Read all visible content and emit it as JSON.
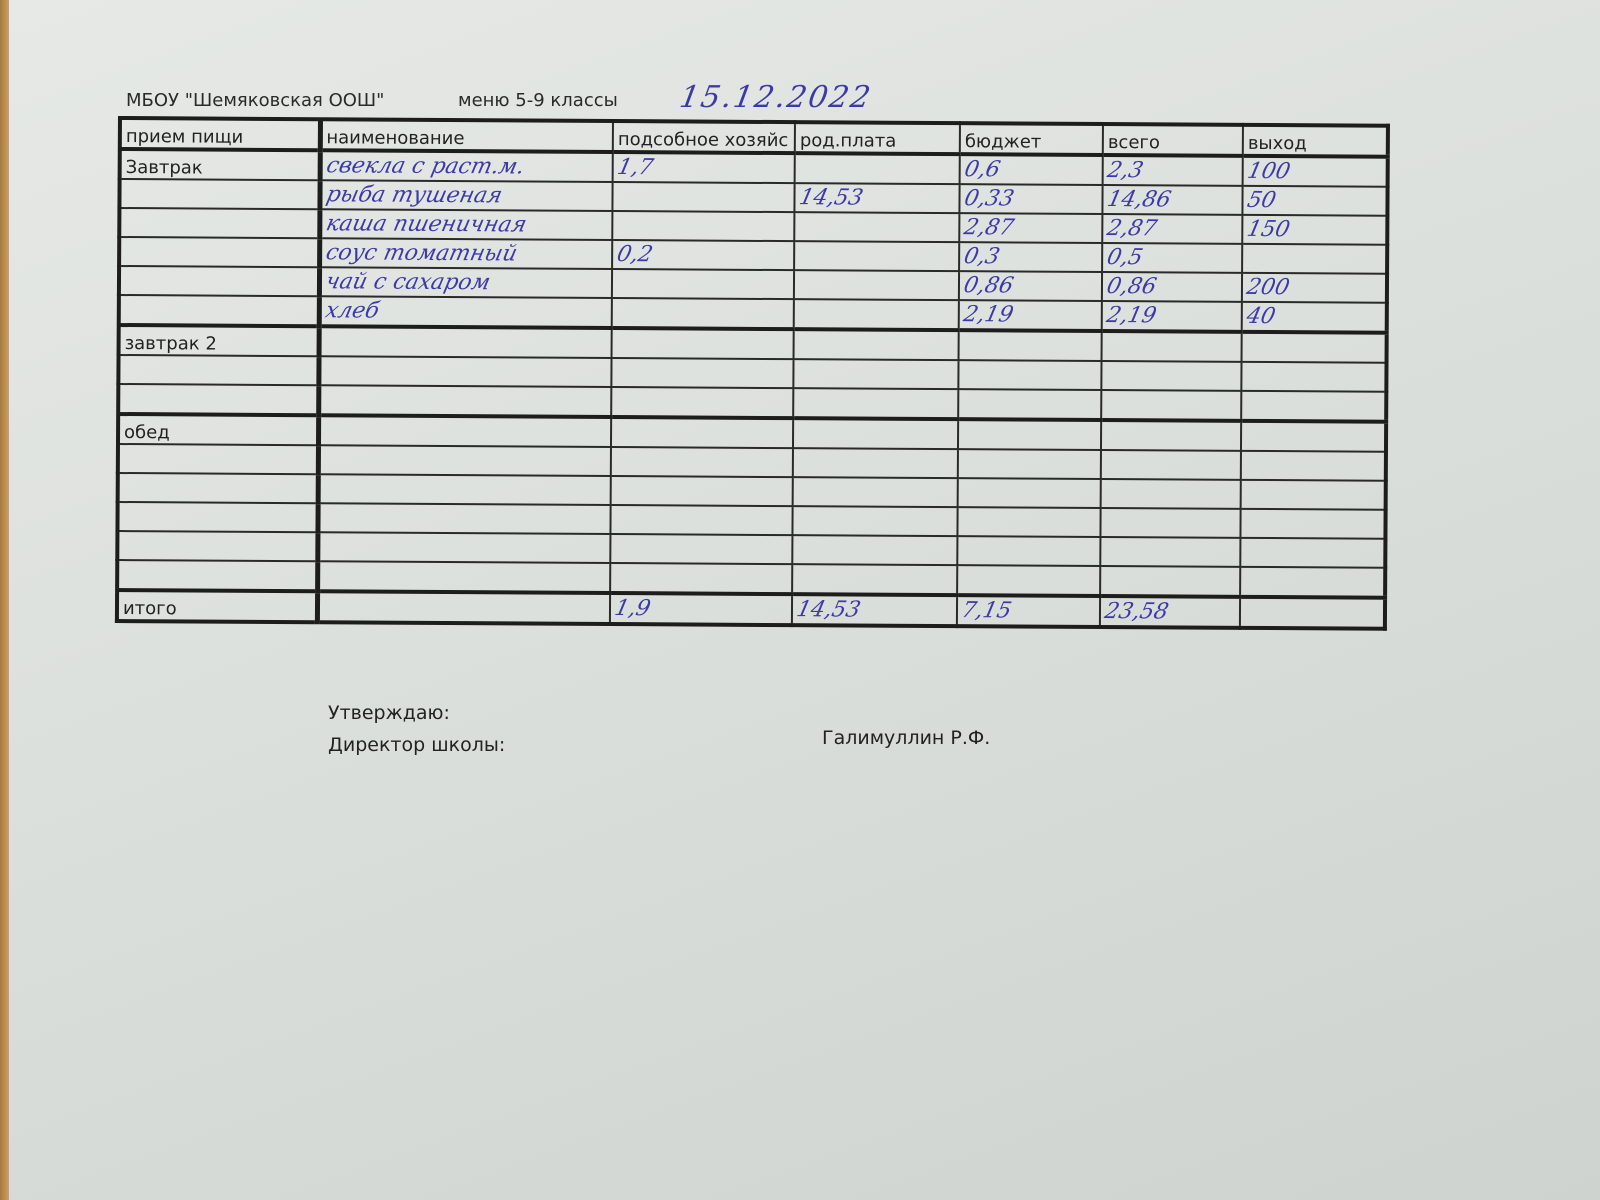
{
  "header": {
    "school": "МБОУ \"Шемяковская ООШ\"",
    "menu": "меню 5-9 классы",
    "date": "15.12.2022"
  },
  "columns": [
    "прием пищи",
    "наименование",
    "подсобное хозяйс",
    "род.плата",
    "бюджет",
    "всего",
    "выход"
  ],
  "breakfast": {
    "label": "Завтрак",
    "rows": [
      {
        "name": "свекла с раст.м.",
        "farm": "1,7",
        "parent": "",
        "budget": "0,6",
        "total": "2,3",
        "yield": "100"
      },
      {
        "name": "рыба тушеная",
        "farm": "",
        "parent": "14,53",
        "budget": "0,33",
        "total": "14,86",
        "yield": "50"
      },
      {
        "name": "каша пшеничная",
        "farm": "",
        "parent": "",
        "budget": "2,87",
        "total": "2,87",
        "yield": "150"
      },
      {
        "name": "соус томатный",
        "farm": "0,2",
        "parent": "",
        "budget": "0,3",
        "total": "0,5",
        "yield": ""
      },
      {
        "name": "чай с сахаром",
        "farm": "",
        "parent": "",
        "budget": "0,86",
        "total": "0,86",
        "yield": "200"
      },
      {
        "name": "хлеб",
        "farm": "",
        "parent": "",
        "budget": "2,19",
        "total": "2,19",
        "yield": "40"
      }
    ]
  },
  "breakfast2": {
    "label": "завтрак 2"
  },
  "lunch": {
    "label": "обед"
  },
  "totals": {
    "label": "итого",
    "farm": "1,9",
    "parent": "14,53",
    "budget": "7,15",
    "total": "23,58"
  },
  "approval": {
    "approve": "Утверждаю:",
    "director": "Директор школы:",
    "name": "Галимуллин Р.Ф."
  },
  "colors": {
    "ink": "#3c3aa6"
  }
}
